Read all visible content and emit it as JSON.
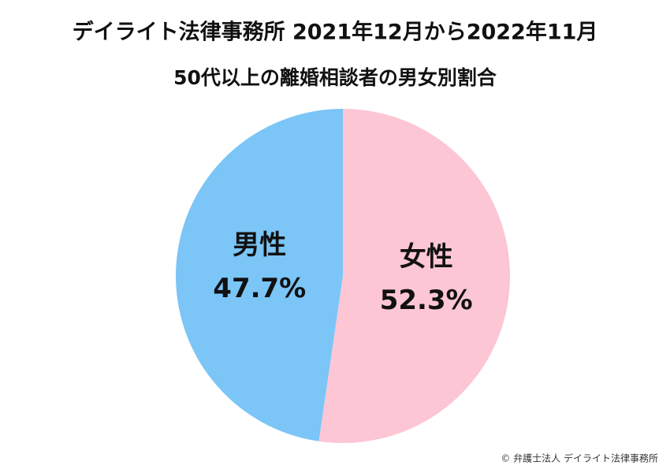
{
  "chart_data": {
    "type": "pie",
    "title": "デイライト法律事務所 2021年12月から2022年11月",
    "subtitle": "50代以上の離婚相談者の男女別割合",
    "categories": [
      "女性",
      "男性"
    ],
    "values": [
      52.3,
      47.7
    ],
    "value_labels": [
      "52.3%",
      "47.7%"
    ],
    "colors": [
      "#fcc6d4",
      "#7bc5f7"
    ],
    "footer": "© 弁護士法人 デイライト法律事務所"
  }
}
